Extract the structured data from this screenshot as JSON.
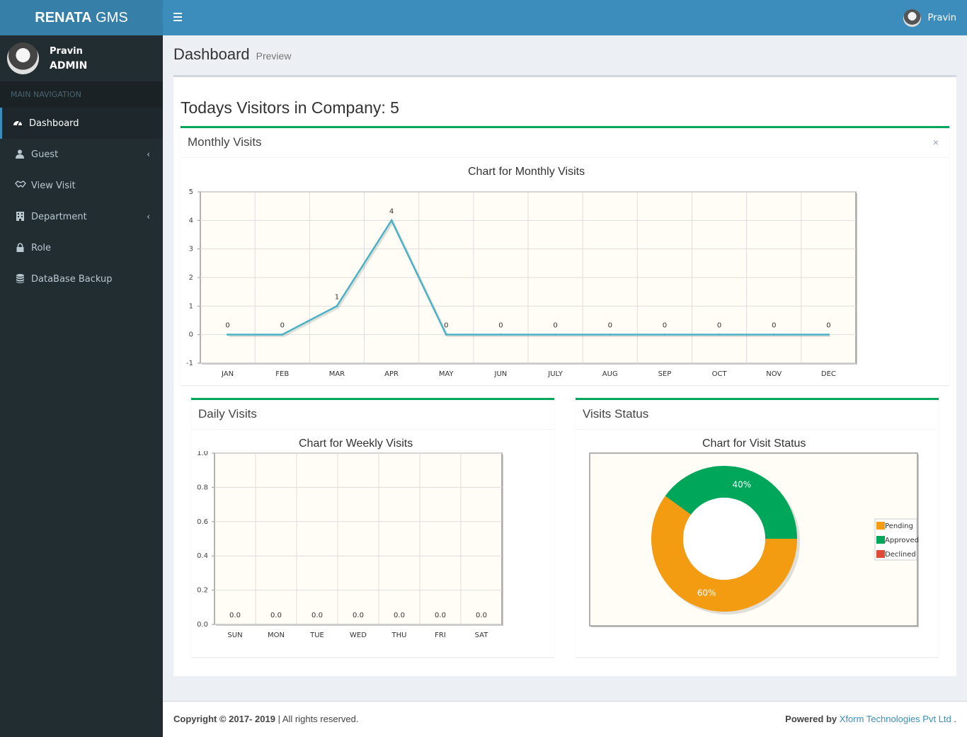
{
  "header": {
    "logo_bold": "RENATA",
    "logo_rest": " GMS",
    "user_name": "Pravin"
  },
  "sidebar": {
    "user_name": "Pravin",
    "user_role": "ADMIN",
    "nav_header": "MAIN NAVIGATION",
    "items": [
      {
        "label": "Dashboard",
        "icon": "dashboard-icon",
        "active": true
      },
      {
        "label": "Guest",
        "icon": "user-icon",
        "has_children": true
      },
      {
        "label": "View Visit",
        "icon": "handshake-icon"
      },
      {
        "label": "Department",
        "icon": "building-icon",
        "has_children": true
      },
      {
        "label": "Role",
        "icon": "lock-icon"
      },
      {
        "label": "DataBase Backup",
        "icon": "database-icon"
      }
    ]
  },
  "page": {
    "title": "Dashboard",
    "subtitle": "Preview",
    "visitors_today": "Todays Visitors in Company: 5"
  },
  "monthly_box": {
    "title": "Monthly Visits",
    "close": "×"
  },
  "daily_box": {
    "title": "Daily Visits"
  },
  "status_box": {
    "title": "Visits Status"
  },
  "chart_data": [
    {
      "type": "line",
      "title": "Chart for Monthly Visits",
      "categories": [
        "JAN",
        "FEB",
        "MAR",
        "APR",
        "MAY",
        "JUN",
        "JULY",
        "AUG",
        "SEP",
        "OCT",
        "NOV",
        "DEC"
      ],
      "values": [
        0,
        0,
        1,
        4,
        0,
        0,
        0,
        0,
        0,
        0,
        0,
        0
      ],
      "ylim": [
        -1,
        5
      ],
      "yticks": [
        -1,
        0,
        1,
        2,
        3,
        4,
        5
      ],
      "color": "#4bb2c5",
      "grid": true
    },
    {
      "type": "bar",
      "title": "Chart for Weekly Visits",
      "categories": [
        "SUN",
        "MON",
        "TUE",
        "WED",
        "THU",
        "FRI",
        "SAT"
      ],
      "values": [
        0,
        0,
        0,
        0,
        0,
        0,
        0
      ],
      "value_labels": [
        "0.0",
        "0.0",
        "0.0",
        "0.0",
        "0.0",
        "0.0",
        "0.0"
      ],
      "ylim": [
        0,
        1
      ],
      "yticks": [
        "0.0",
        "0.2",
        "0.4",
        "0.6",
        "0.8",
        "1.0"
      ],
      "grid": true
    },
    {
      "type": "pie",
      "title": "Chart for Visit Status",
      "categories": [
        "Pending",
        "Approved",
        "Declined"
      ],
      "values": [
        60,
        40,
        0
      ],
      "labels": [
        "60%",
        "40%",
        ""
      ],
      "colors": [
        "#f39c12",
        "#00a65a",
        "#dd4b39"
      ],
      "legend": "right"
    }
  ],
  "footer": {
    "copyright": "Copyright © 2017- 2019",
    "rights": " | All rights reserved.",
    "powered": "Powered by",
    "company": "Xform Technologies Pvt Ltd",
    "dot": " ."
  }
}
